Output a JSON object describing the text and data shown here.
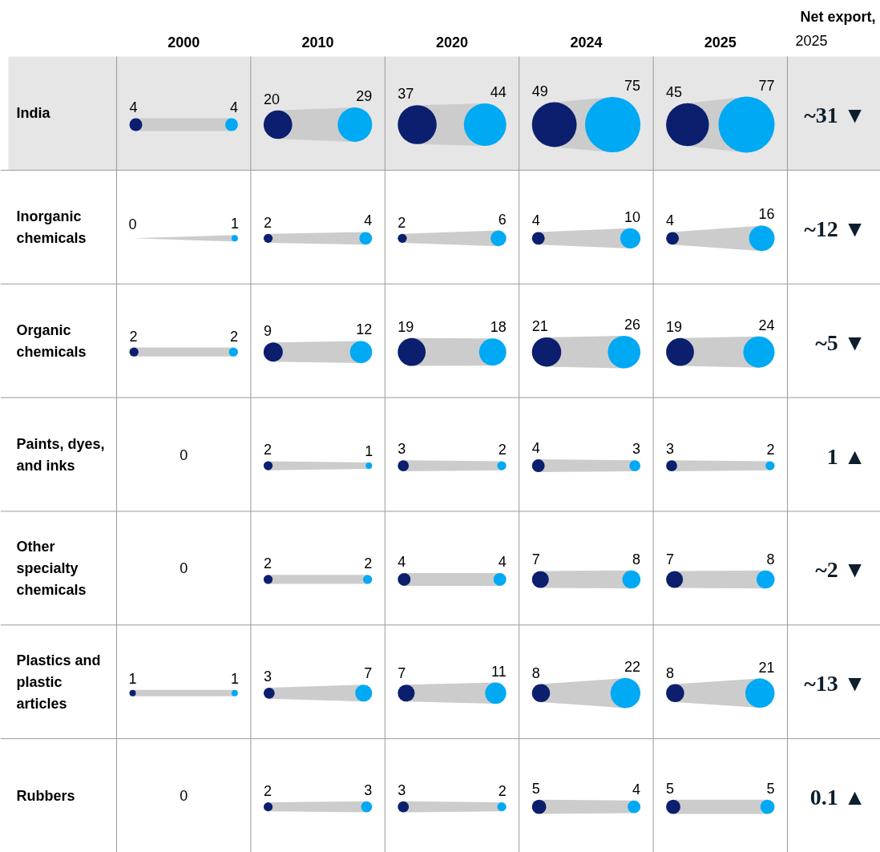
{
  "chart_data": {
    "type": "other",
    "y2label": "Net export, 2025",
    "categories": [
      "2000",
      "2010",
      "2020",
      "2024",
      "2025"
    ],
    "y_categories": [
      "India",
      "Inorganic chemicals",
      "Organic chemicals",
      "Paints, dyes, and inks",
      "Other specialty chemicals",
      "Plastics and plastic articles",
      "Rubbers"
    ],
    "y2_categories": [
      "~31 ▼",
      "~12 ▼",
      "~5 ▼",
      "1 ▲",
      "~2 ▼",
      "~13 ▼",
      "0.1 ▲"
    ],
    "series": [
      {
        "color": "#0b1f6e",
        "values": [
          4,
          20,
          37,
          49,
          45
        ],
        "value_labels": [
          "4",
          "20",
          "37",
          "49",
          "45"
        ]
      },
      {
        "color": "#00a9f4",
        "values": [
          4,
          29,
          44,
          75,
          77
        ],
        "value_labels": [
          "4",
          "29",
          "44",
          "75",
          "77"
        ]
      },
      {
        "color": "#0b1f6e",
        "values": [
          0,
          2,
          2,
          4,
          4
        ],
        "value_labels": [
          "0",
          "2",
          "2",
          "4",
          "4"
        ]
      },
      {
        "color": "#00a9f4",
        "values": [
          1,
          4,
          6,
          10,
          16
        ],
        "value_labels": [
          "1",
          "4",
          "6",
          "10",
          "16"
        ]
      },
      {
        "color": "#0b1f6e",
        "values": [
          2,
          9,
          19,
          21,
          19
        ],
        "value_labels": [
          "2",
          "9",
          "19",
          "21",
          "19"
        ]
      },
      {
        "color": "#00a9f4",
        "values": [
          2,
          12,
          18,
          26,
          24
        ],
        "value_labels": [
          "2",
          "12",
          "18",
          "26",
          "24"
        ]
      },
      {
        "color": "#0b1f6e",
        "values": [
          0,
          2,
          3,
          4,
          3
        ],
        "value_labels": [
          "0",
          "2",
          "3",
          "4",
          "3"
        ]
      },
      {
        "color": "#00a9f4",
        "values": [
          null,
          1,
          2,
          3,
          2
        ],
        "value_labels": [
          null,
          "1",
          "2",
          "3",
          "2"
        ]
      },
      {
        "color": "#0b1f6e",
        "values": [
          0,
          2,
          4,
          7,
          7
        ],
        "value_labels": [
          "0",
          "2",
          "4",
          "7",
          "7"
        ]
      },
      {
        "color": "#00a9f4",
        "values": [
          null,
          2,
          4,
          8,
          8
        ],
        "value_labels": [
          null,
          "2",
          "4",
          "8",
          "8"
        ]
      },
      {
        "color": "#0b1f6e",
        "values": [
          1,
          3,
          7,
          8,
          8
        ],
        "value_labels": [
          "1",
          "3",
          "7",
          "8",
          "8"
        ]
      },
      {
        "color": "#00a9f4",
        "values": [
          1,
          7,
          11,
          22,
          21
        ],
        "value_labels": [
          "1",
          "7",
          "11",
          "22",
          "21"
        ]
      },
      {
        "color": "#0b1f6e",
        "values": [
          0,
          2,
          3,
          5,
          5
        ],
        "value_labels": [
          "0",
          "2",
          "3",
          "5",
          "5"
        ]
      },
      {
        "color": "#00a9f4",
        "values": [
          null,
          3,
          2,
          4,
          5
        ],
        "value_labels": [
          null,
          "3",
          "2",
          "4",
          "5"
        ]
      }
    ]
  }
}
